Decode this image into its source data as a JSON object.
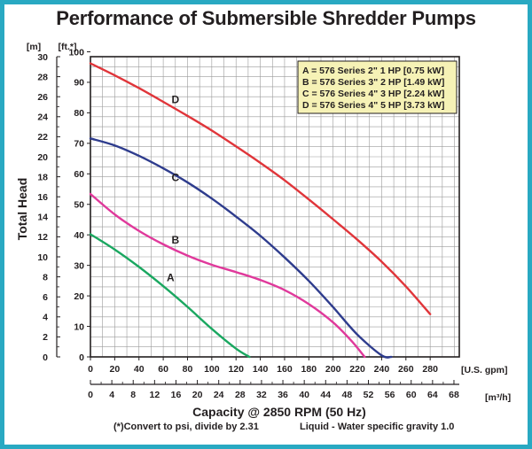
{
  "chart_data": {
    "type": "line",
    "title": "Performance of Submersible Shredder Pumps",
    "ylabel": "Total Head",
    "xlabel": "Capacity @ 2850 RPM (50 Hz)",
    "footnote_left": "(*)Convert to psi, divide by 2.31",
    "footnote_right": "Liquid - Water specific gravity 1.0",
    "y_unit_m": "[m]",
    "y_unit_ft": "[ft.*]",
    "x_unit_gpm": "[U.S. gpm]",
    "x_unit_m3h": "[m³/h]",
    "ylim_m": [
      0,
      30
    ],
    "ylim_ft": [
      0,
      98.4
    ],
    "xlim_gpm": [
      0,
      304
    ],
    "xlim_m3h": [
      0,
      69.0
    ],
    "grid": true,
    "y_ticks_m": [
      "0",
      "2",
      "4",
      "6",
      "8",
      "10",
      "12",
      "14",
      "16",
      "18",
      "20",
      "22",
      "24",
      "26",
      "28",
      "30"
    ],
    "y_ticks_ft": [
      "0",
      "10",
      "20",
      "30",
      "40",
      "50",
      "60",
      "70",
      "80",
      "90",
      "100"
    ],
    "x_ticks_gpm": [
      "0",
      "20",
      "40",
      "60",
      "80",
      "100",
      "120",
      "140",
      "160",
      "180",
      "200",
      "220",
      "240",
      "260",
      "280"
    ],
    "x_ticks_m3h": [
      "0",
      "4",
      "8",
      "12",
      "16",
      "20",
      "24",
      "28",
      "32",
      "36",
      "40",
      "44",
      "48",
      "52",
      "56",
      "60",
      "64",
      "68"
    ],
    "legend": {
      "placement": "top-right",
      "entries": [
        "A = 576 Series 2\" 1 HP [0.75 kW]",
        "B = 576 Series 3\" 2 HP [1.49 kW]",
        "C = 576 Series 4\" 3 HP [2.24 kW]",
        "D = 576 Series 4\" 5 HP [3.73 kW]"
      ]
    },
    "series": [
      {
        "name": "A",
        "color": "#1aa760",
        "x_gpm": [
          0,
          20,
          40,
          60,
          80,
          100,
          120,
          131
        ],
        "y_ft": [
          40.2,
          35.2,
          29.5,
          23.2,
          16.4,
          9.2,
          2.7,
          0
        ],
        "label_at": {
          "x_gpm": 66,
          "y_ft": 24.8
        }
      },
      {
        "name": "B",
        "color": "#e0399b",
        "x_gpm": [
          0,
          20,
          40,
          60,
          80,
          100,
          120,
          140,
          160,
          180,
          200,
          215,
          226
        ],
        "y_ft": [
          53.4,
          46.7,
          41.3,
          36.9,
          33.2,
          30.2,
          27.8,
          25.2,
          21.9,
          17.3,
          11.3,
          5.3,
          0
        ],
        "label_at": {
          "x_gpm": 70,
          "y_ft": 37.1
        }
      },
      {
        "name": "C",
        "color": "#2e3c8d",
        "x_gpm": [
          0,
          20,
          40,
          60,
          80,
          100,
          120,
          140,
          160,
          180,
          200,
          220,
          240,
          248
        ],
        "y_ft": [
          71.6,
          69.3,
          65.9,
          61.8,
          57.2,
          51.9,
          46.0,
          39.7,
          32.6,
          24.9,
          16.3,
          7.3,
          0.5,
          0
        ],
        "label_at": {
          "x_gpm": 70,
          "y_ft": 57.6
        }
      },
      {
        "name": "D",
        "color": "#e0353a",
        "x_gpm": [
          0,
          20,
          40,
          60,
          80,
          100,
          120,
          140,
          160,
          180,
          200,
          220,
          240,
          260,
          280
        ],
        "y_ft": [
          96.2,
          92.3,
          88.1,
          83.6,
          79.0,
          74.2,
          69.0,
          63.6,
          57.9,
          51.6,
          45.1,
          38.4,
          31.2,
          23.1,
          14.0
        ],
        "label_at": {
          "x_gpm": 70,
          "y_ft": 83.2
        }
      }
    ]
  }
}
